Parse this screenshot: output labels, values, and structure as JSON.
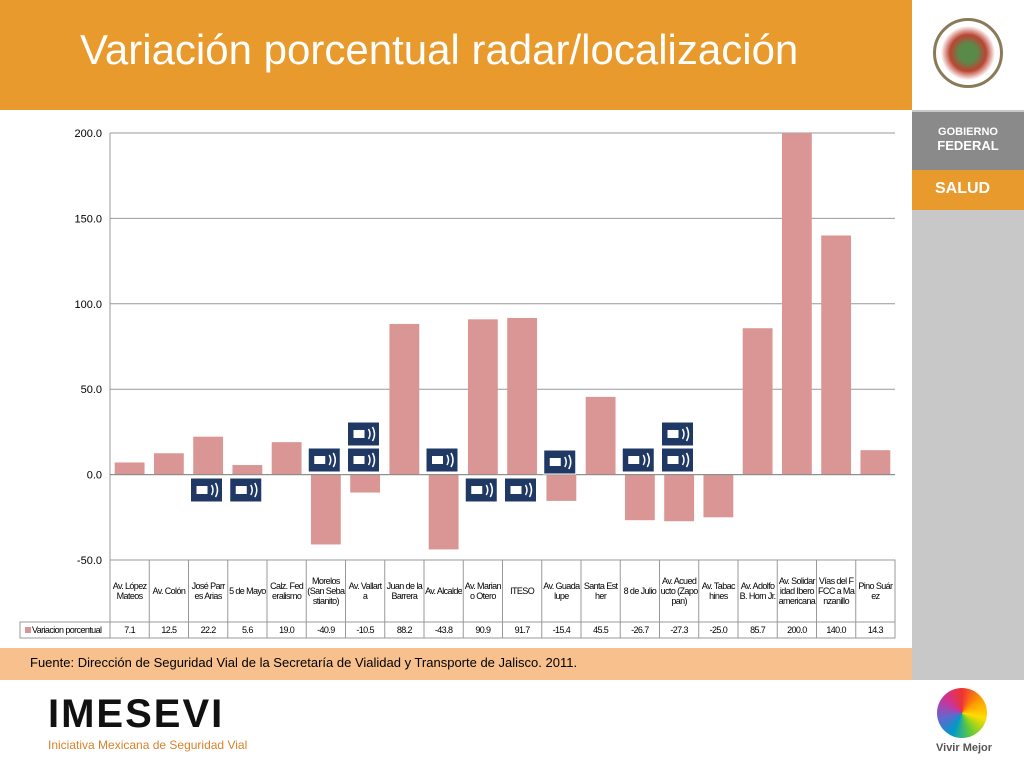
{
  "slide": {
    "title": "Variación porcentual radar/localización",
    "source": "Fuente: Dirección de Seguridad Vial de la Secretaría de Vialidad y Transporte de Jalisco. 2011.",
    "gov_line1": "Gobierno",
    "gov_line2": "Federal",
    "ministry": "SALUD",
    "logo": "IMESEVI",
    "logo_subtitle": "Iniciativa Mexicana de Seguridad Vial",
    "motto": "Vivir Mejor"
  },
  "chart_data": {
    "type": "bar",
    "categories": [
      "Av. López Mateos",
      "Av. Colón",
      "José Parres Arias",
      "5 de Mayo",
      "Calz. Federalismo",
      "Morelos (San Sebastianito)",
      "Av. Vallarta",
      "Juan de la Barrera",
      "Av. Alcalde",
      "Av. Mariano Otero",
      "ITESO",
      "Av. Guadalupe",
      "Santa Esther",
      "8 de Julio",
      "Av. Acueducto (Zapopan)",
      "Av. Tabachines",
      "Av. Adolfo B. Horn Jr.",
      "Av. Solidaridad Iberoamericana",
      "Vías del FFCC a Manzanillo",
      "Pino Suárez"
    ],
    "series": [
      {
        "name": "Variacion porcentual",
        "color": "#d99694",
        "values": [
          7.1,
          12.5,
          22.2,
          5.6,
          19.0,
          -40.9,
          -10.5,
          88.2,
          -43.8,
          90.9,
          91.7,
          -15.4,
          45.5,
          -26.7,
          -27.3,
          -25.0,
          85.7,
          200.0,
          140.0,
          14.3
        ],
        "value_labels": [
          "7.1",
          "12.5",
          "22.2",
          "5.6",
          "19.0",
          "-40.9",
          "-10.5",
          "88.2",
          "-43.8",
          "90.9",
          "91.7",
          "-15.4",
          "45.5",
          "-26.7",
          "-27.3",
          "-25.0",
          "85.7",
          "200.0",
          "140.0",
          "14.3"
        ]
      }
    ],
    "ylim": [
      -50,
      200
    ],
    "yticks": [
      {
        "value": -50,
        "label": "-50.0"
      },
      {
        "value": 0,
        "label": "0.0"
      },
      {
        "value": 50,
        "label": "50.0"
      },
      {
        "value": 100,
        "label": "100.0"
      },
      {
        "value": 150,
        "label": "150.0"
      },
      {
        "value": 200,
        "label": "200.0"
      }
    ],
    "grid": true
  }
}
